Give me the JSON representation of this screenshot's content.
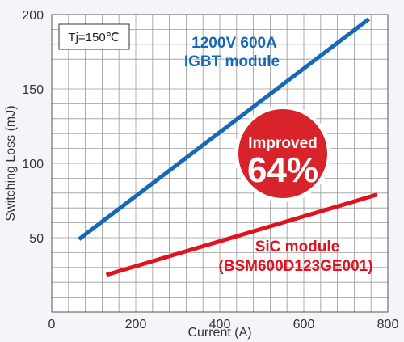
{
  "chart_data": {
    "type": "line",
    "xlabel": "Current (A)",
    "ylabel": "Switching Loss (mJ)",
    "xlim": [
      0,
      800
    ],
    "ylim": [
      0,
      200
    ],
    "x_ticks": [
      "0",
      "200",
      "400",
      "600",
      "800"
    ],
    "y_ticks": [
      "50",
      "100",
      "150",
      "200"
    ],
    "grid": true,
    "series": [
      {
        "name": "1200V 600A IGBT module",
        "label_lines": [
          "1200V 600A",
          "IGBT module"
        ],
        "color": "#1569b8",
        "x": [
          65,
          755
        ],
        "y": [
          49,
          197
        ]
      },
      {
        "name": "SiC module (BSM600D123GE001)",
        "label_lines": [
          "SiC module",
          "(BSM600D123GE001)"
        ],
        "color": "#e11220",
        "x": [
          130,
          775
        ],
        "y": [
          25,
          79
        ]
      }
    ],
    "annotations": {
      "condition": "Tj=150℃",
      "badge_line1": "Improved",
      "badge_line2": "64%",
      "badge_color": "#d8232a"
    }
  }
}
